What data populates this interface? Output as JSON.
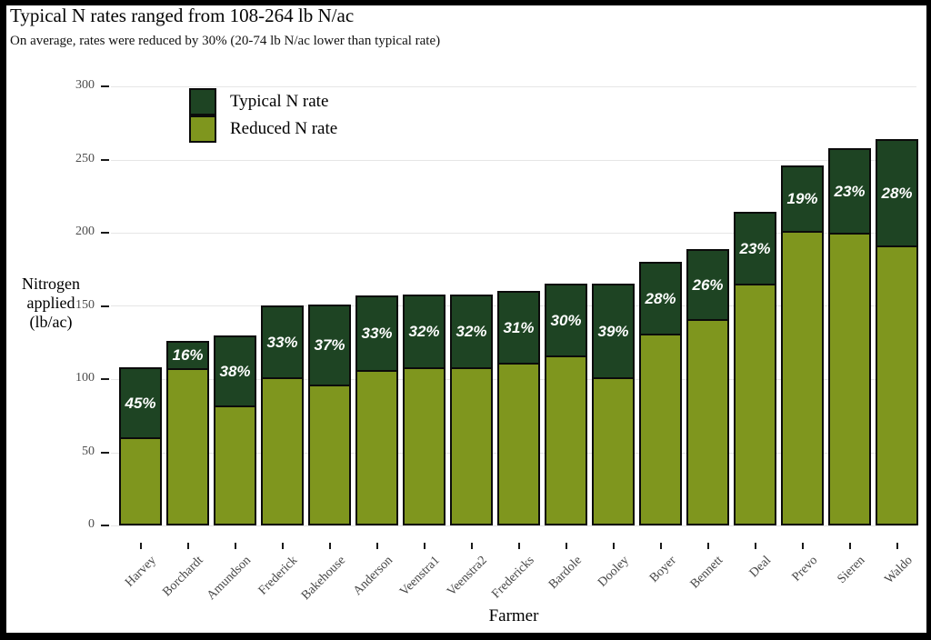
{
  "chart_data": {
    "type": "bar",
    "stacked": true,
    "title": "Typical N rates ranged from 108-264 lb N/ac",
    "subtitle": "On average, rates were reduced by 30% (20-74 lb N/ac lower than typical rate)",
    "xlabel": "Farmer",
    "ylabel": "Nitrogen applied (lb/ac)",
    "ylabel_lines": [
      "Nitrogen",
      "applied",
      "(lb/ac)"
    ],
    "ylim": [
      0,
      300
    ],
    "yticks": [
      0,
      50,
      100,
      150,
      200,
      250,
      300
    ],
    "grid": "horizontal-major-only",
    "legend_position": "top-left-inside",
    "categories": [
      "Harvey",
      "Borchardt",
      "Amundson",
      "Frederick",
      "Bakehouse",
      "Anderson",
      "Veenstra1",
      "Veenstra2",
      "Fredericks",
      "Bardole",
      "Dooley",
      "Boyer",
      "Bennett",
      "Deal",
      "Prevo",
      "Sieren",
      "Waldo"
    ],
    "series": [
      {
        "name": "Typical N rate",
        "color": "#1e4423",
        "values": [
          108,
          126,
          130,
          150,
          151,
          157,
          158,
          158,
          160,
          165,
          165,
          180,
          189,
          214,
          246,
          258,
          264
        ]
      },
      {
        "name": "Reduced N rate",
        "color": "#7f961e",
        "values": [
          59,
          106,
          81,
          100,
          95,
          105,
          107,
          107,
          110,
          115,
          100,
          130,
          140,
          164,
          200,
          199,
          190
        ]
      }
    ],
    "bar_labels": [
      "45%",
      "16%",
      "38%",
      "33%",
      "37%",
      "33%",
      "32%",
      "32%",
      "31%",
      "30%",
      "39%",
      "28%",
      "26%",
      "23%",
      "19%",
      "23%",
      "28%"
    ],
    "colors": {
      "typical": "#1e4423",
      "reduced": "#7f961e",
      "gridline": "#e6e6e6",
      "tick": "#1a1a1a",
      "tick_label": "#4d4d4d",
      "bar_border": "#0b0b0b",
      "bar_label_text": "#ffffff",
      "frame": "#000000"
    }
  }
}
